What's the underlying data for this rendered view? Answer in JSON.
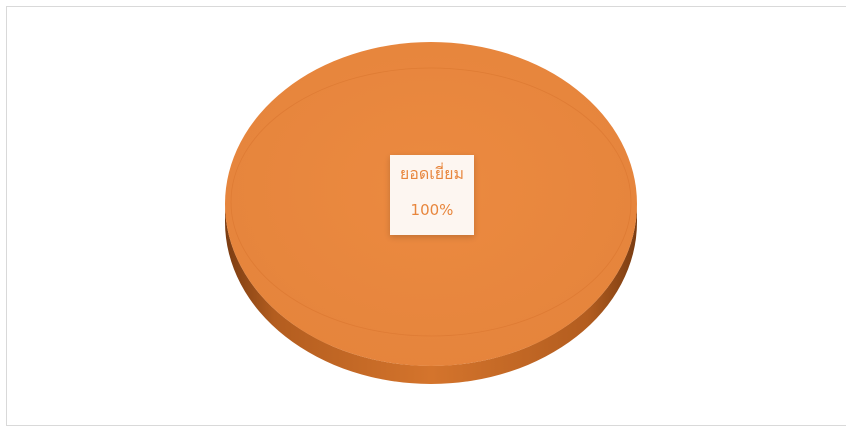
{
  "chart_data": {
    "type": "pie",
    "style": "3d",
    "categories": [
      "ยอดเยี่ยม"
    ],
    "values": [
      100
    ],
    "labels": [
      "100%"
    ],
    "colors": [
      "#e8863d"
    ],
    "legend": "none"
  }
}
